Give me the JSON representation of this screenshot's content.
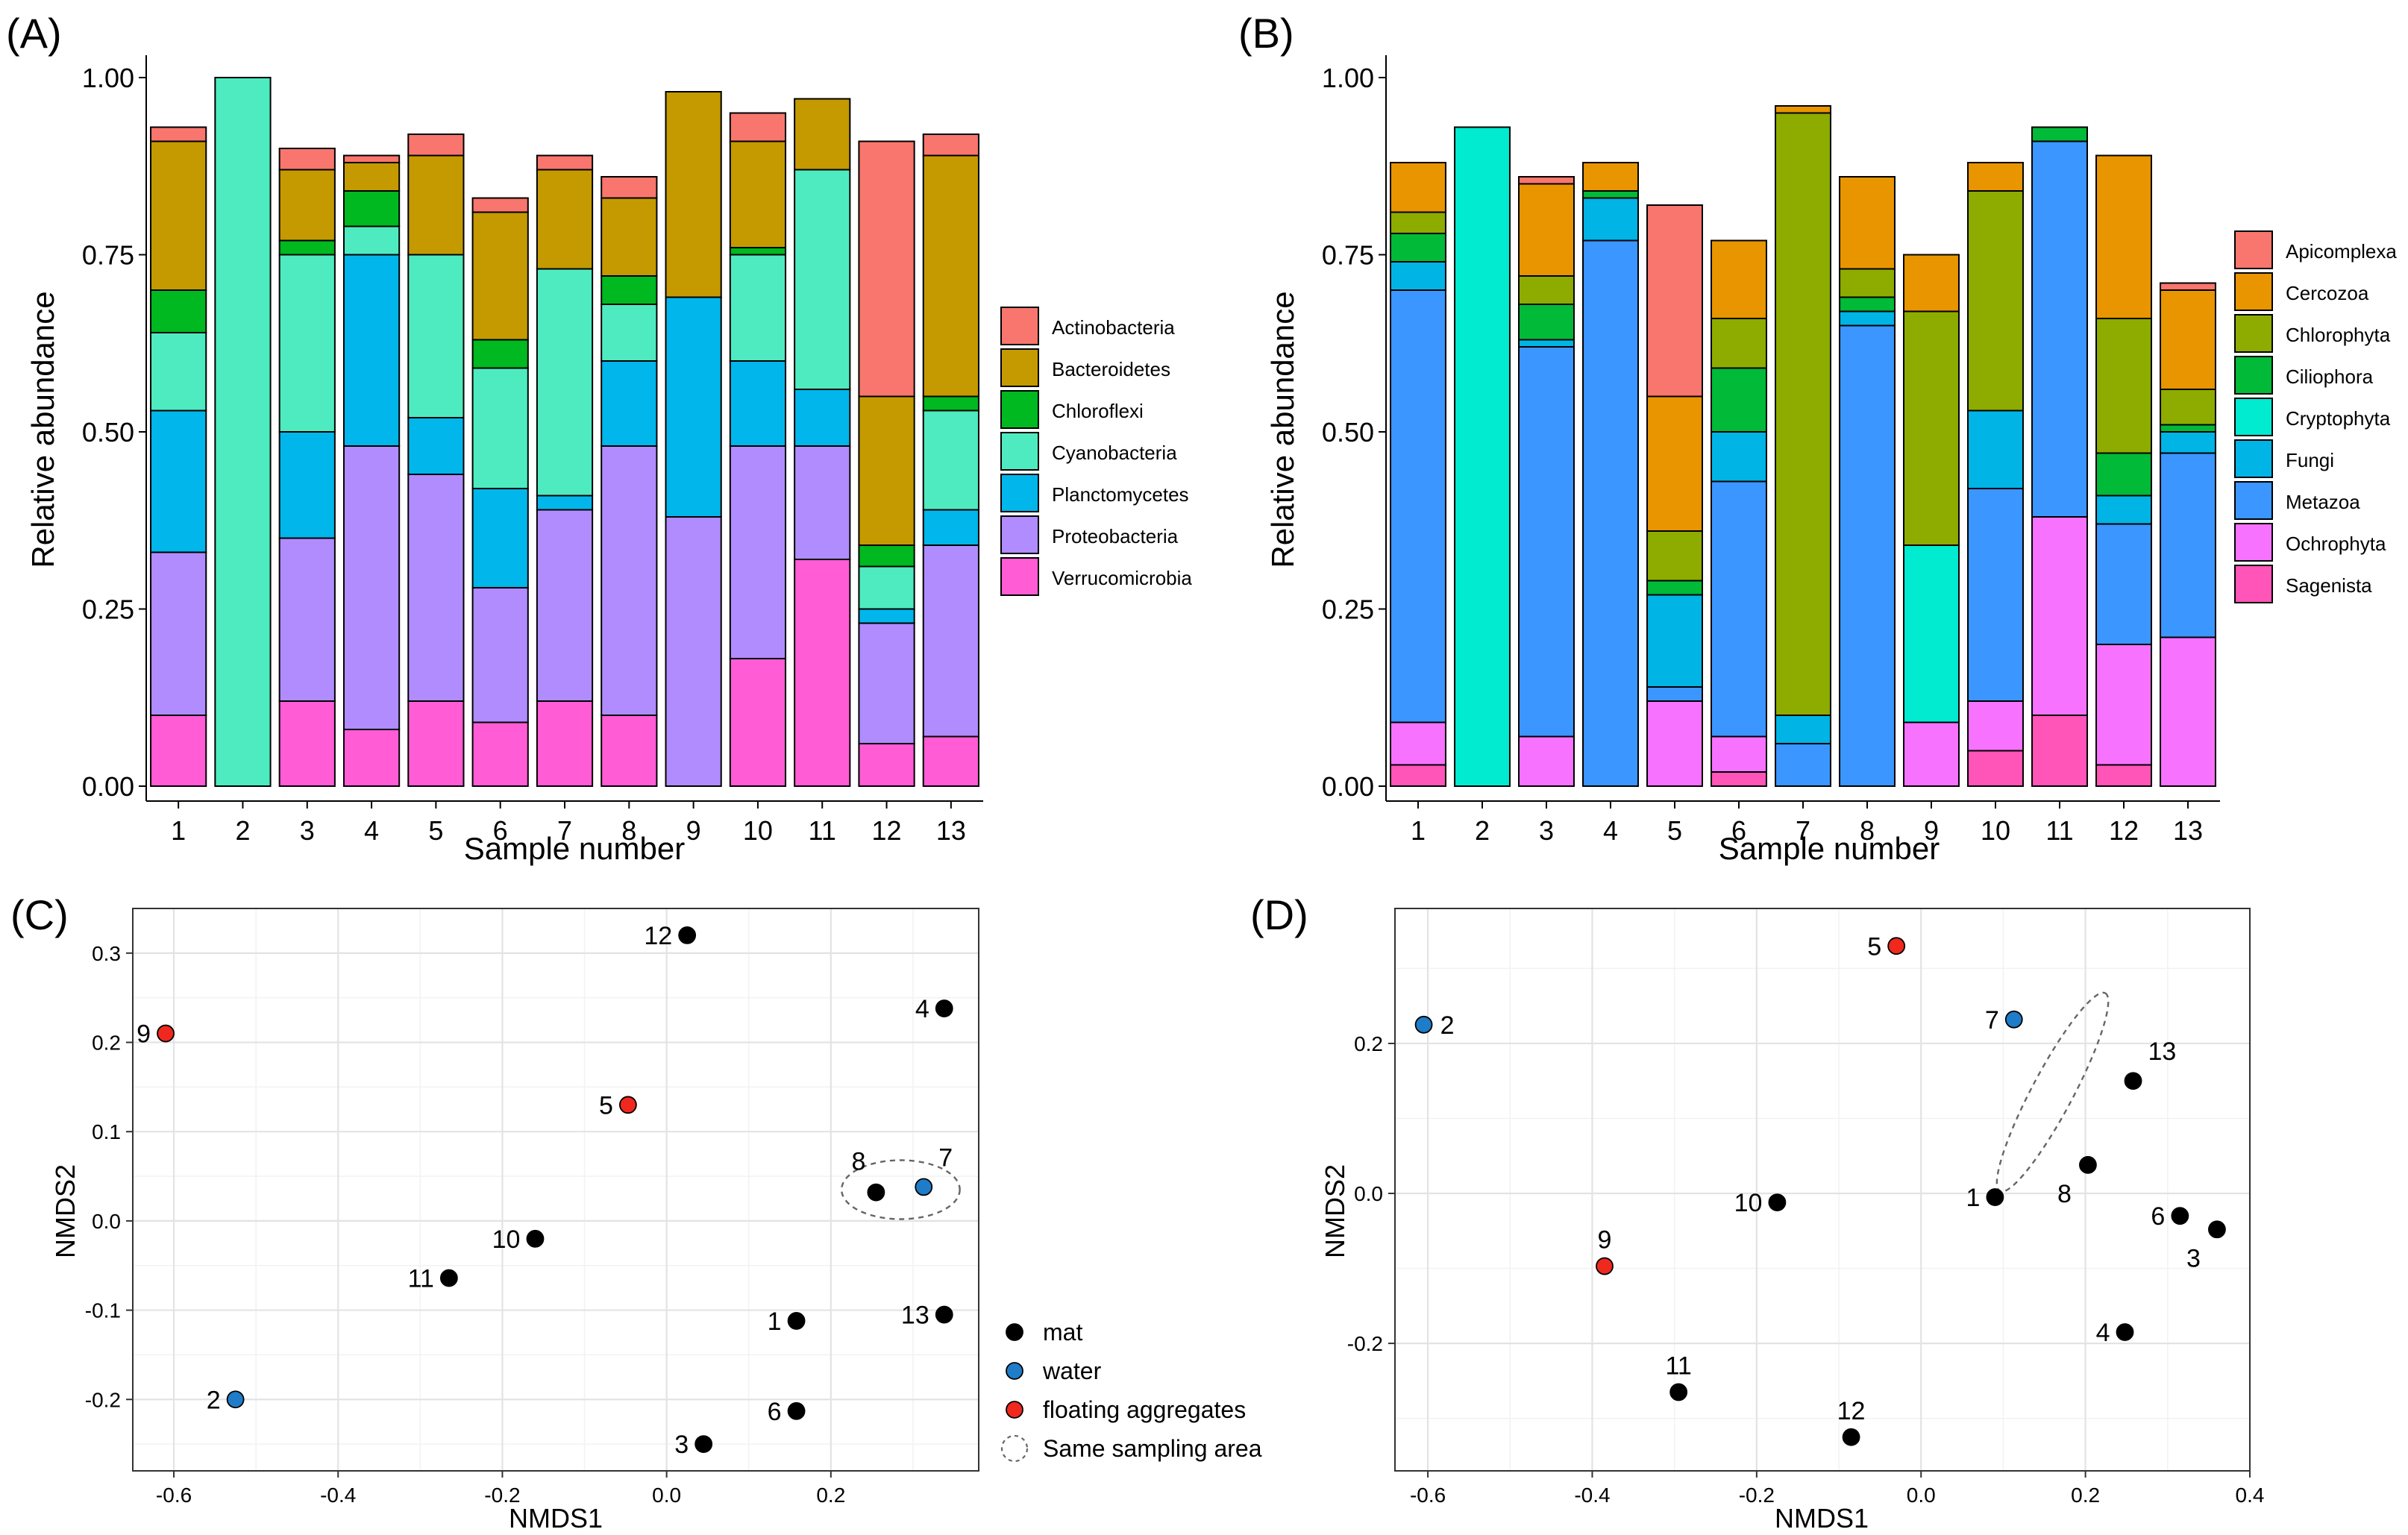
{
  "colors": {
    "bacteria": {
      "Actinobacteria": "#F8766D",
      "Bacteroidetes": "#C49A00",
      "Chloroflexi": "#00B81F",
      "Cyanobacteria": "#4FEBC0",
      "Planctomycetes": "#00B6EB",
      "Proteobacteria": "#B08CFF",
      "Verrucomicrobia": "#FF5CD6"
    },
    "euk": {
      "Apicomplexa": "#F8766D",
      "Cercozoa": "#E89500",
      "Chlorophyta": "#8EAB00",
      "Ciliophora": "#00BA38",
      "Cryptophyta": "#00EBD0",
      "Fungi": "#00B4E6",
      "Metazoa": "#3B96FF",
      "Ochrophyta": "#F672FF",
      "Sagenista": "#FF54B8"
    },
    "groups": {
      "mat": "#000000",
      "water": "#1F7CC8",
      "floating aggregates": "#F0281E"
    }
  },
  "chart_data": [
    {
      "panel": "(A)",
      "type": "bar",
      "stacked": true,
      "xlabel": "Sample number",
      "ylabel": "Relative abundance",
      "ylim": [
        0,
        1.0
      ],
      "yticks": [
        "0.00",
        "0.25",
        "0.50",
        "0.75",
        "1.00"
      ],
      "categories": [
        "1",
        "2",
        "3",
        "4",
        "5",
        "6",
        "7",
        "8",
        "9",
        "10",
        "11",
        "12",
        "13"
      ],
      "legend": [
        "Actinobacteria",
        "Bacteroidetes",
        "Chloroflexi",
        "Cyanobacteria",
        "Planctomycetes",
        "Proteobacteria",
        "Verrucomicrobia"
      ],
      "series": [
        {
          "name": "Verrucomicrobia",
          "values": [
            0.1,
            0.0,
            0.12,
            0.08,
            0.12,
            0.09,
            0.12,
            0.1,
            0.0,
            0.18,
            0.32,
            0.06,
            0.07
          ]
        },
        {
          "name": "Proteobacteria",
          "values": [
            0.23,
            0.0,
            0.23,
            0.4,
            0.32,
            0.19,
            0.27,
            0.38,
            0.38,
            0.3,
            0.16,
            0.17,
            0.27
          ]
        },
        {
          "name": "Planctomycetes",
          "values": [
            0.2,
            0.0,
            0.15,
            0.27,
            0.08,
            0.14,
            0.02,
            0.12,
            0.31,
            0.12,
            0.08,
            0.02,
            0.05
          ]
        },
        {
          "name": "Cyanobacteria",
          "values": [
            0.11,
            1.0,
            0.25,
            0.04,
            0.23,
            0.17,
            0.32,
            0.08,
            0.0,
            0.15,
            0.31,
            0.06,
            0.14
          ]
        },
        {
          "name": "Chloroflexi",
          "values": [
            0.06,
            0.0,
            0.02,
            0.05,
            0.0,
            0.04,
            0.0,
            0.04,
            0.0,
            0.01,
            0.0,
            0.03,
            0.02
          ]
        },
        {
          "name": "Bacteroidetes",
          "values": [
            0.21,
            0.0,
            0.1,
            0.04,
            0.14,
            0.18,
            0.14,
            0.11,
            0.29,
            0.15,
            0.1,
            0.21,
            0.34
          ]
        },
        {
          "name": "Actinobacteria",
          "values": [
            0.02,
            0.0,
            0.03,
            0.01,
            0.03,
            0.02,
            0.02,
            0.03,
            0.0,
            0.04,
            0.0,
            0.36,
            0.03
          ]
        }
      ]
    },
    {
      "panel": "(B)",
      "type": "bar",
      "stacked": true,
      "xlabel": "Sample number",
      "ylabel": "Relative abundance",
      "ylim": [
        0,
        1.0
      ],
      "yticks": [
        "0.00",
        "0.25",
        "0.50",
        "0.75",
        "1.00"
      ],
      "categories": [
        "1",
        "2",
        "3",
        "4",
        "5",
        "6",
        "7",
        "8",
        "9",
        "10",
        "11",
        "12",
        "13"
      ],
      "legend": [
        "Apicomplexa",
        "Cercozoa",
        "Chlorophyta",
        "Ciliophora",
        "Cryptophyta",
        "Fungi",
        "Metazoa",
        "Ochrophyta",
        "Sagenista"
      ],
      "series": [
        {
          "name": "Sagenista",
          "values": [
            0.03,
            0.0,
            0.0,
            0.0,
            0.0,
            0.02,
            0.0,
            0.0,
            0.0,
            0.05,
            0.1,
            0.03,
            0.0
          ]
        },
        {
          "name": "Ochrophyta",
          "values": [
            0.06,
            0.0,
            0.07,
            0.0,
            0.12,
            0.05,
            0.0,
            0.0,
            0.09,
            0.07,
            0.28,
            0.17,
            0.21
          ]
        },
        {
          "name": "Metazoa",
          "values": [
            0.61,
            0.0,
            0.55,
            0.77,
            0.02,
            0.36,
            0.06,
            0.65,
            0.0,
            0.3,
            0.53,
            0.17,
            0.26
          ]
        },
        {
          "name": "Fungi",
          "values": [
            0.04,
            0.0,
            0.01,
            0.06,
            0.13,
            0.07,
            0.04,
            0.02,
            0.0,
            0.11,
            0.0,
            0.04,
            0.03
          ]
        },
        {
          "name": "Cryptophyta",
          "values": [
            0.0,
            0.93,
            0.0,
            0.0,
            0.0,
            0.0,
            0.0,
            0.0,
            0.25,
            0.0,
            0.0,
            0.0,
            0.0
          ]
        },
        {
          "name": "Ciliophora",
          "values": [
            0.04,
            0.0,
            0.05,
            0.01,
            0.02,
            0.09,
            0.0,
            0.02,
            0.0,
            0.0,
            0.02,
            0.06,
            0.01
          ]
        },
        {
          "name": "Chlorophyta",
          "values": [
            0.03,
            0.0,
            0.04,
            0.0,
            0.07,
            0.07,
            0.85,
            0.04,
            0.33,
            0.31,
            0.0,
            0.19,
            0.05
          ]
        },
        {
          "name": "Cercozoa",
          "values": [
            0.07,
            0.0,
            0.13,
            0.04,
            0.19,
            0.11,
            0.01,
            0.13,
            0.08,
            0.04,
            0.0,
            0.23,
            0.14
          ]
        },
        {
          "name": "Apicomplexa",
          "values": [
            0.0,
            0.0,
            0.01,
            0.0,
            0.27,
            0.0,
            0.0,
            0.0,
            0.0,
            0.0,
            0.0,
            0.0,
            0.01
          ]
        }
      ]
    },
    {
      "panel": "(C)",
      "type": "scatter",
      "xlabel": "NMDS1",
      "ylabel": "NMDS2",
      "xlim": [
        -0.65,
        0.38
      ],
      "ylim": [
        -0.28,
        0.35
      ],
      "xticks": [
        {
          "v": -0.6,
          "label": "-0.6"
        },
        {
          "v": -0.4,
          "label": "-0.4"
        },
        {
          "v": -0.2,
          "label": "-0.2"
        },
        {
          "v": 0,
          "label": "0.0"
        },
        {
          "v": 0.2,
          "label": "0.2"
        }
      ],
      "yticks": [
        {
          "v": -0.2,
          "label": "-0.2"
        },
        {
          "v": -0.1,
          "label": "-0.1"
        },
        {
          "v": 0,
          "label": "0.0"
        },
        {
          "v": 0.1,
          "label": "0.1"
        },
        {
          "v": 0.2,
          "label": "0.2"
        },
        {
          "v": 0.3,
          "label": "0.3"
        }
      ],
      "points": [
        {
          "label": "1",
          "x": 0.158,
          "y": -0.112,
          "group": "mat",
          "pos": "left"
        },
        {
          "label": "2",
          "x": -0.525,
          "y": -0.2,
          "group": "water",
          "pos": "left"
        },
        {
          "label": "3",
          "x": 0.045,
          "y": -0.25,
          "group": "mat",
          "pos": "left"
        },
        {
          "label": "4",
          "x": 0.338,
          "y": 0.238,
          "group": "mat",
          "pos": "left"
        },
        {
          "label": "5",
          "x": -0.047,
          "y": 0.13,
          "group": "floating aggregates",
          "pos": "left"
        },
        {
          "label": "6",
          "x": 0.158,
          "y": -0.213,
          "group": "mat",
          "pos": "left"
        },
        {
          "label": "7",
          "x": 0.313,
          "y": 0.038,
          "group": "water",
          "pos": "upright"
        },
        {
          "label": "8",
          "x": 0.255,
          "y": 0.032,
          "group": "mat",
          "pos": "upleft"
        },
        {
          "label": "9",
          "x": -0.61,
          "y": 0.21,
          "group": "floating aggregates",
          "pos": "left"
        },
        {
          "label": "10",
          "x": -0.16,
          "y": -0.02,
          "group": "mat",
          "pos": "left"
        },
        {
          "label": "11",
          "x": -0.265,
          "y": -0.064,
          "group": "mat",
          "pos": "left"
        },
        {
          "label": "12",
          "x": 0.025,
          "y": 0.32,
          "group": "mat",
          "pos": "left"
        },
        {
          "label": "13",
          "x": 0.338,
          "y": -0.105,
          "group": "mat",
          "pos": "left"
        }
      ],
      "ellipse": {
        "cx": 0.285,
        "cy": 0.035,
        "rx": 0.072,
        "ry": 0.033,
        "angle": 0
      },
      "legend": [
        {
          "label": "mat",
          "group": "mat"
        },
        {
          "label": "water",
          "group": "water"
        },
        {
          "label": "floating aggregates",
          "group": "floating aggregates"
        },
        {
          "label": "Same sampling area",
          "group": "ellipse"
        }
      ]
    },
    {
      "panel": "(D)",
      "type": "scatter",
      "xlabel": "NMDS1",
      "ylabel": "NMDS2",
      "xlim": [
        -0.64,
        0.4
      ],
      "ylim": [
        -0.37,
        0.38
      ],
      "xticks": [
        {
          "v": -0.6,
          "label": "-0.6"
        },
        {
          "v": -0.4,
          "label": "-0.4"
        },
        {
          "v": -0.2,
          "label": "-0.2"
        },
        {
          "v": 0,
          "label": "0.0"
        },
        {
          "v": 0.2,
          "label": "0.2"
        },
        {
          "v": 0.4,
          "label": "0.4"
        }
      ],
      "yticks": [
        {
          "v": -0.2,
          "label": "-0.2"
        },
        {
          "v": 0,
          "label": "0.0"
        },
        {
          "v": 0.2,
          "label": "0.2"
        }
      ],
      "points": [
        {
          "label": "1",
          "x": 0.09,
          "y": -0.005,
          "group": "mat",
          "pos": "left"
        },
        {
          "label": "2",
          "x": -0.605,
          "y": 0.225,
          "group": "water",
          "pos": "right"
        },
        {
          "label": "3",
          "x": 0.36,
          "y": -0.048,
          "group": "mat",
          "pos": "downleft"
        },
        {
          "label": "4",
          "x": 0.248,
          "y": -0.185,
          "group": "mat",
          "pos": "left"
        },
        {
          "label": "5",
          "x": -0.03,
          "y": 0.33,
          "group": "floating aggregates",
          "pos": "left"
        },
        {
          "label": "6",
          "x": 0.315,
          "y": -0.03,
          "group": "mat",
          "pos": "left"
        },
        {
          "label": "7",
          "x": 0.113,
          "y": 0.232,
          "group": "water",
          "pos": "left"
        },
        {
          "label": "8",
          "x": 0.203,
          "y": 0.038,
          "group": "mat",
          "pos": "downleft"
        },
        {
          "label": "9",
          "x": -0.385,
          "y": -0.097,
          "group": "floating aggregates",
          "pos": "above"
        },
        {
          "label": "10",
          "x": -0.175,
          "y": -0.012,
          "group": "mat",
          "pos": "left"
        },
        {
          "label": "11",
          "x": -0.295,
          "y": -0.265,
          "group": "mat",
          "pos": "above"
        },
        {
          "label": "12",
          "x": -0.085,
          "y": -0.325,
          "group": "mat",
          "pos": "above"
        },
        {
          "label": "13",
          "x": 0.258,
          "y": 0.15,
          "group": "mat",
          "pos": "upright"
        }
      ],
      "ellipse": {
        "cx": 0.16,
        "cy": 0.135,
        "rx": 0.13,
        "ry": 0.025,
        "angle": -62
      }
    }
  ]
}
